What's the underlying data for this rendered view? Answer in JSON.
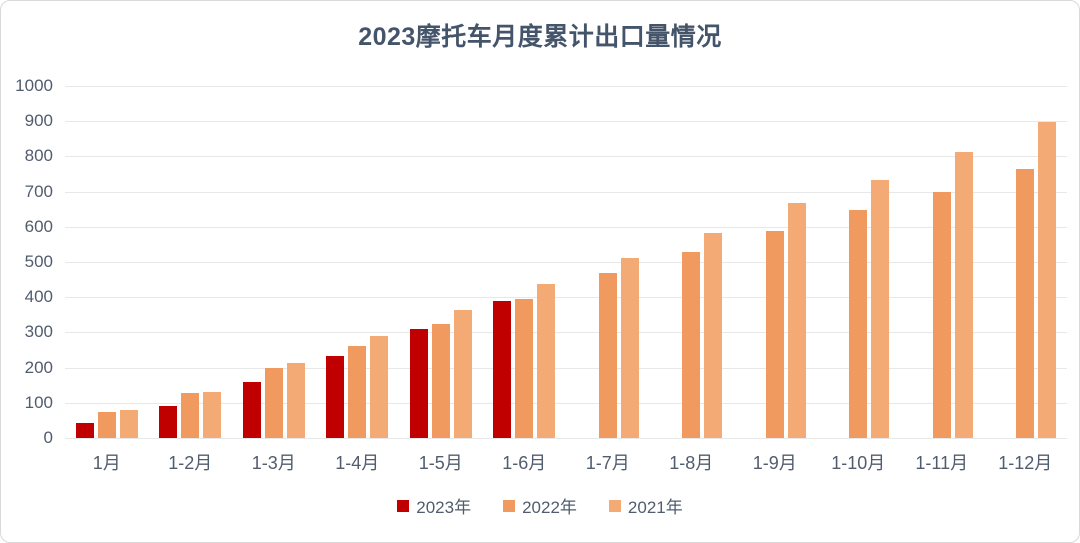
{
  "chart_data": {
    "type": "bar",
    "title": "2023摩托车月度累计出口量情况",
    "categories": [
      "1月",
      "1-2月",
      "1-3月",
      "1-4月",
      "1-5月",
      "1-6月",
      "1-7月",
      "1-8月",
      "1-9月",
      "1-10月",
      "1-11月",
      "1-12月"
    ],
    "series": [
      {
        "name": "2023年",
        "color": "#c00000",
        "values": [
          44,
          92,
          159,
          233,
          309,
          388,
          null,
          null,
          null,
          null,
          null,
          null
        ]
      },
      {
        "name": "2022年",
        "color": "#f09a60",
        "values": [
          75,
          127,
          200,
          261,
          324,
          394,
          469,
          528,
          589,
          647,
          700,
          763
        ]
      },
      {
        "name": "2021年",
        "color": "#f3aa75",
        "values": [
          81,
          132,
          212,
          290,
          365,
          438,
          511,
          582,
          668,
          732,
          813,
          897
        ]
      }
    ],
    "xlabel": "",
    "ylabel": "",
    "ylim": [
      0,
      1000
    ],
    "ytick_step": 100,
    "grid": "horizontal",
    "legend_position": "bottom",
    "colors": {
      "title_text": "#44546a",
      "axis_text": "#515c6e",
      "gridline": "#e8e8e8",
      "card_border": "#d9d9d9",
      "background": "#ffffff"
    }
  }
}
